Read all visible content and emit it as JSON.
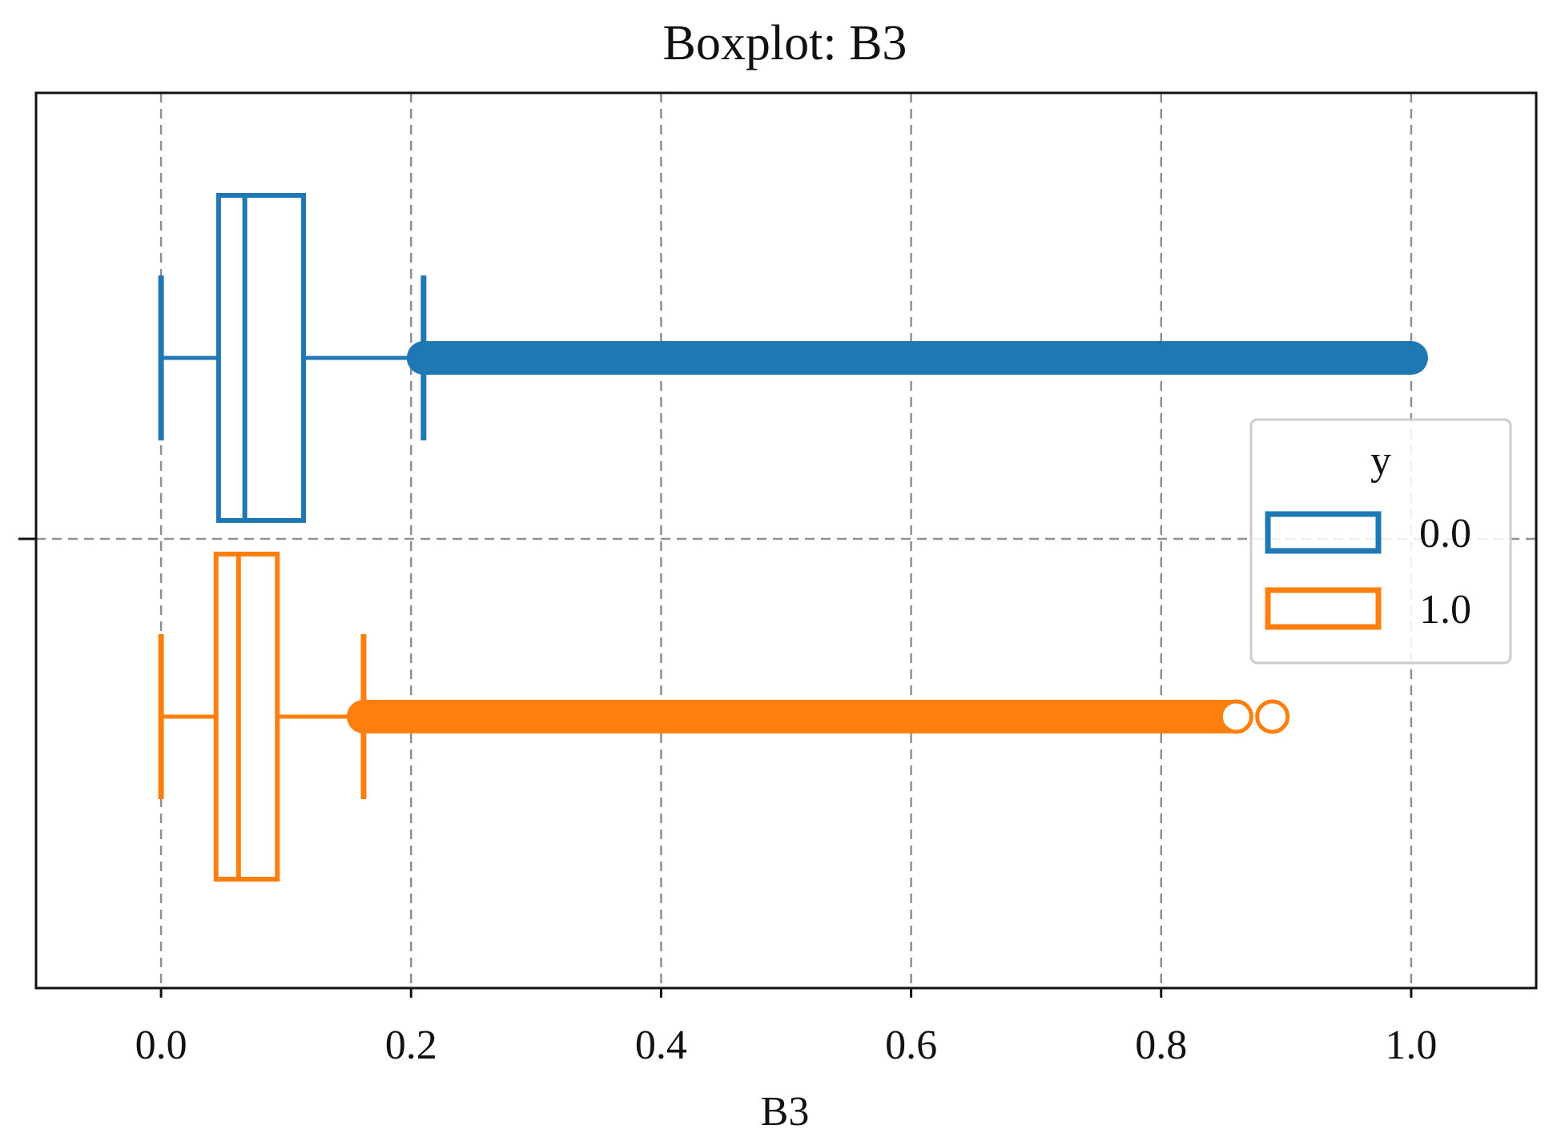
{
  "chart_data": {
    "type": "boxplot",
    "title": "Boxplot: B3",
    "xlabel": "B3",
    "ylabel": "",
    "xlim": [
      -0.1,
      1.1
    ],
    "xticks": [
      0.0,
      0.2,
      0.4,
      0.6,
      0.8,
      1.0
    ],
    "xtick_labels": [
      "0.0",
      "0.2",
      "0.4",
      "0.6",
      "0.8",
      "1.0"
    ],
    "grid": true,
    "legend": {
      "title": "y",
      "position": "center-right",
      "entries": [
        "0.0",
        "1.0"
      ]
    },
    "series": [
      {
        "name": "0.0",
        "color": "#1f77b4",
        "whisker_low": 0.0,
        "q1": 0.046,
        "median": 0.067,
        "q3": 0.114,
        "whisker_high": 0.21,
        "outliers_range": [
          0.21,
          1.0
        ],
        "outliers_dense": true,
        "separate_outliers": []
      },
      {
        "name": "1.0",
        "color": "#ff7f0e",
        "whisker_low": 0.0,
        "q1": 0.044,
        "median": 0.062,
        "q3": 0.093,
        "whisker_high": 0.162,
        "outliers_range": [
          0.162,
          0.855
        ],
        "outliers_dense": true,
        "separate_outliers": [
          0.86,
          0.889
        ]
      }
    ]
  }
}
